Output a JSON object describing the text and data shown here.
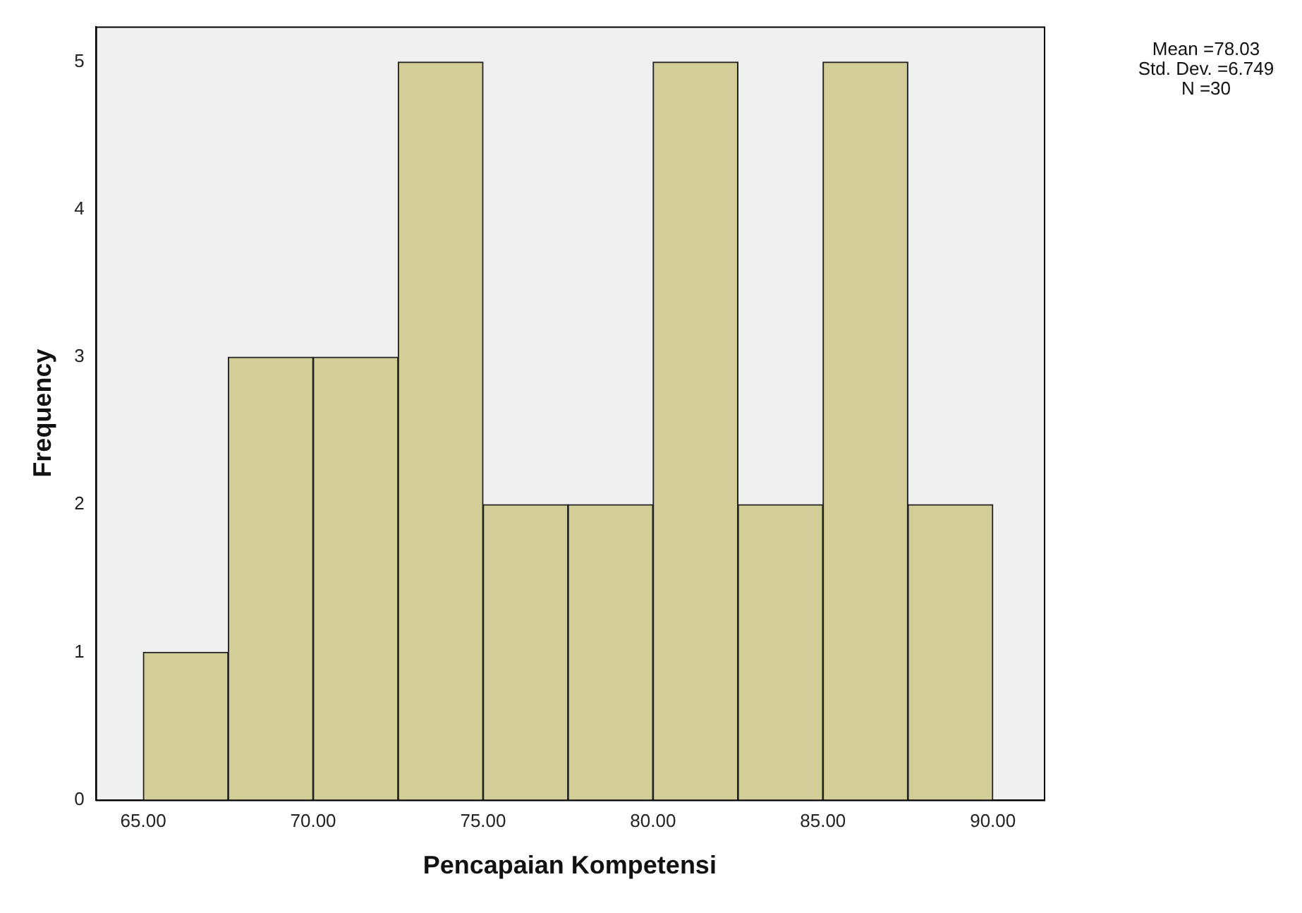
{
  "chart_data": {
    "type": "histogram",
    "xlabel": "Pencapaian Kompetensi",
    "ylabel": "Frequency",
    "bins": [
      65,
      67.5,
      70,
      72.5,
      75,
      77.5,
      80,
      82.5,
      85,
      87.5,
      90
    ],
    "values": [
      1,
      3,
      3,
      5,
      2,
      2,
      5,
      2,
      5,
      2
    ],
    "color": "#d3ce97",
    "xlim": [
      63.6,
      91.5
    ],
    "ylim": [
      0,
      5.24
    ],
    "xticks": [
      {
        "value": 65,
        "label": "65.00"
      },
      {
        "value": 70,
        "label": "70.00"
      },
      {
        "value": 75,
        "label": "75.00"
      },
      {
        "value": 80,
        "label": "80.00"
      },
      {
        "value": 85,
        "label": "85.00"
      },
      {
        "value": 90,
        "label": "90.00"
      }
    ],
    "yticks": [
      0,
      1,
      2,
      3,
      4,
      5
    ],
    "annotations": [
      "Mean =78.03",
      "Std. Dev. =6.749",
      "N =30"
    ]
  }
}
